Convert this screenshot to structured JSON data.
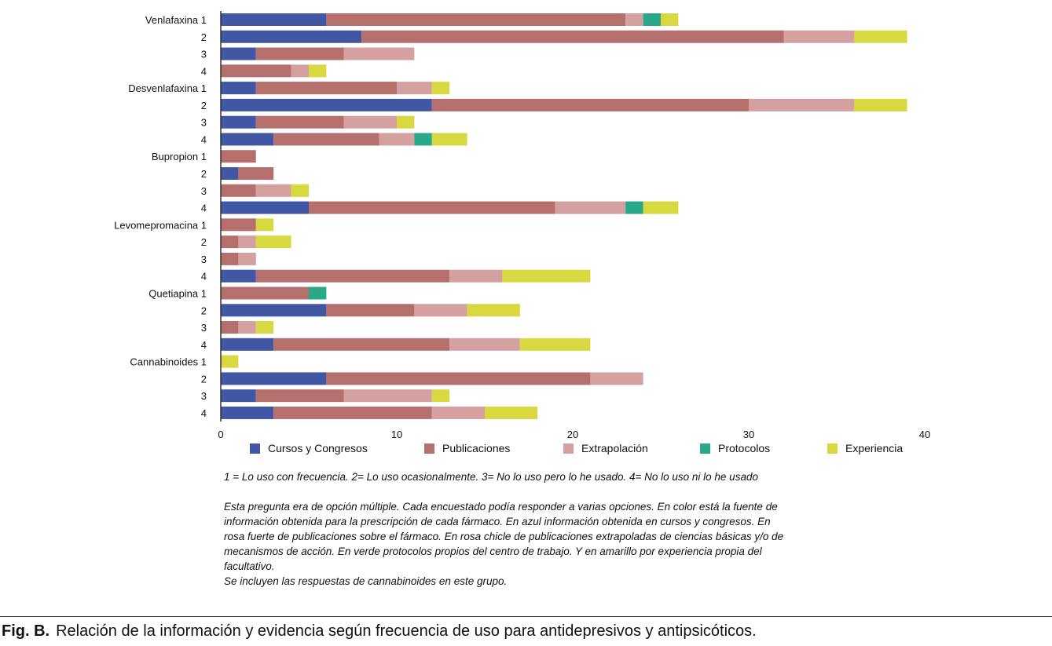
{
  "chart_data": {
    "type": "bar",
    "orientation": "horizontal",
    "stacked": true,
    "categories": [
      "Venlafaxina 1",
      "2",
      "3",
      "4",
      "Desvenlafaxina 1",
      "2",
      "3",
      "4",
      "Bupropion 1",
      "2",
      "3",
      "4",
      "Levomepromacina 1",
      "2",
      "3",
      "4",
      "Quetiapina 1",
      "2",
      "3",
      "4",
      "Cannabinoides 1",
      "2",
      "3",
      "4"
    ],
    "series": [
      {
        "name": "Cursos y Congresos",
        "color": "#4257a4",
        "values": [
          6,
          8,
          2,
          0,
          2,
          12,
          2,
          3,
          0,
          1,
          0,
          5,
          0,
          0,
          0,
          2,
          0,
          6,
          0,
          3,
          0,
          6,
          2,
          3
        ]
      },
      {
        "name": "Publicaciones",
        "color": "#b5706e",
        "values": [
          17,
          24,
          5,
          4,
          8,
          18,
          5,
          6,
          2,
          2,
          2,
          14,
          2,
          1,
          1,
          11,
          5,
          5,
          1,
          10,
          0,
          15,
          5,
          9
        ]
      },
      {
        "name": "Extrapolación",
        "color": "#d4a0a0",
        "values": [
          1,
          4,
          4,
          1,
          2,
          6,
          3,
          2,
          0,
          0,
          2,
          4,
          0,
          1,
          1,
          3,
          0,
          3,
          1,
          4,
          0,
          3,
          5,
          3
        ]
      },
      {
        "name": "Protocolos",
        "color": "#2aa88a",
        "values": [
          1,
          0,
          0,
          0,
          0,
          0,
          0,
          1,
          0,
          0,
          0,
          1,
          0,
          0,
          0,
          0,
          1,
          0,
          0,
          0,
          0,
          0,
          0,
          0
        ]
      },
      {
        "name": "Experiencia",
        "color": "#d8d840",
        "values": [
          1,
          3,
          0,
          1,
          1,
          3,
          1,
          2,
          0,
          0,
          1,
          2,
          1,
          2,
          0,
          5,
          0,
          3,
          1,
          4,
          1,
          0,
          1,
          3
        ]
      }
    ],
    "xlim": [
      0,
      40
    ],
    "xticks": [
      "0",
      "10",
      "20",
      "30",
      "40"
    ],
    "grid": false,
    "legend": "bottom"
  },
  "notes": {
    "scale": "1 = Lo uso con frecuencia. 2= Lo uso ocasionalmente. 3= No lo uso pero lo he usado. 4= No lo uso ni lo he usado",
    "lines": [
      "Esta pregunta era de opción múltiple. Cada encuestado podía responder a varias opciones. En color está la fuente de",
      "información obtenida para la prescripción de cada fármaco. En azul información obtenida en cursos y congresos. En",
      "rosa fuerte de publicaciones sobre el fármaco. En rosa chicle de publicaciones extrapoladas de ciencias básicas y/o de",
      "mecanismos de acción. En verde protocolos propios del centro de trabajo. Y en amarillo por experiencia propia del",
      "facultativo.",
      "Se incluyen las respuestas de cannabinoides en este grupo."
    ]
  },
  "caption": {
    "label": "Fig. B.",
    "text": "Relación de la información y evidencia según frecuencia de uso para antidepresivos y antipsicóticos."
  }
}
